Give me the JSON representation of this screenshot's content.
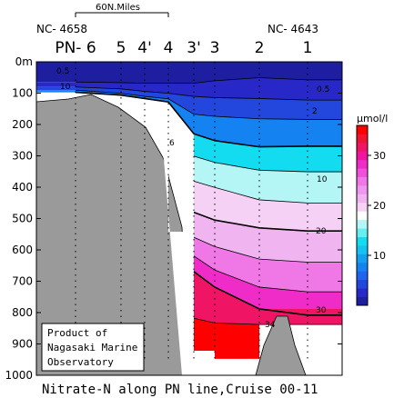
{
  "chart_data": {
    "type": "heatmap",
    "title": "Nitrate-N along PN line,Cruise 00-11",
    "y_axis": {
      "ticks": [
        "0m",
        "100",
        "200",
        "300",
        "400",
        "500",
        "600",
        "700",
        "800",
        "900",
        "1000"
      ],
      "range": [
        0,
        1000
      ],
      "inverted": true
    },
    "stations": [
      {
        "label": "PN- 6",
        "distance": 0
      },
      {
        "label": "5",
        "distance": 50
      },
      {
        "label": "4'",
        "distance": 76
      },
      {
        "label": "4",
        "distance": 102
      },
      {
        "label": "3'",
        "distance": 130
      },
      {
        "label": "3",
        "distance": 153
      },
      {
        "label": "2",
        "distance": 202
      },
      {
        "label": "1",
        "distance": 255
      }
    ],
    "endpoints": {
      "left": "NC- 4658",
      "right": "NC- 4643"
    },
    "scale_bar": {
      "label": "60N.Miles",
      "length": 100
    },
    "colorbar": {
      "unit": "μmol/l",
      "ticks": [
        10,
        20,
        30
      ],
      "range": [
        0,
        36
      ],
      "colors": [
        "#1e1ea0",
        "#2828c8",
        "#2346dc",
        "#1e64f0",
        "#1482f0",
        "#14a0f0",
        "#14c3f0",
        "#14dcf0",
        "#64f0f0",
        "#b4f5f5",
        "#ffffff",
        "#f5d2f5",
        "#f0b4f0",
        "#f096f0",
        "#f078e6",
        "#f050dc",
        "#f02cc8",
        "#f014a0",
        "#f01464",
        "#f01432",
        "#ff0000"
      ]
    },
    "contours": [
      {
        "value": 0.5,
        "depth": [
          62,
          64,
          66,
          66,
          66,
          58,
          48,
          55
        ]
      },
      {
        "value": 2,
        "depth": [
          78,
          84,
          92,
          98,
          108,
          112,
          115,
          120
        ]
      },
      {
        "value": 6,
        "depth": [
          88,
          98,
          108,
          116,
          165,
          172,
          180,
          182
        ]
      },
      {
        "value": 10,
        "depth": [
          95,
          104,
          115,
          126,
          228,
          250,
          270,
          268
        ]
      },
      {
        "value": 14,
        "depth": [
          null,
          null,
          null,
          null,
          300,
          320,
          345,
          350
        ]
      },
      {
        "value": 18,
        "depth": [
          null,
          null,
          null,
          null,
          380,
          400,
          440,
          450
        ]
      },
      {
        "value": 20,
        "depth": [
          null,
          null,
          null,
          null,
          480,
          505,
          530,
          540
        ]
      },
      {
        "value": 24,
        "depth": [
          null,
          null,
          null,
          null,
          560,
          590,
          630,
          640
        ]
      },
      {
        "value": 28,
        "depth": [
          null,
          null,
          null,
          null,
          620,
          665,
          720,
          735
        ]
      },
      {
        "value": 30,
        "depth": [
          null,
          null,
          null,
          null,
          670,
          720,
          790,
          810
        ]
      },
      {
        "value": 34,
        "depth": [
          null,
          null,
          null,
          null,
          820,
          835,
          840,
          null
        ]
      }
    ],
    "contour_labels": [
      {
        "text": "0.5",
        "side": "left"
      },
      {
        "text": "10",
        "side": "left"
      },
      {
        "text": "6",
        "side": "middle"
      },
      {
        "text": "0.5",
        "side": "right"
      },
      {
        "text": "2",
        "side": "right"
      },
      {
        "text": "10",
        "side": "right"
      },
      {
        "text": "20",
        "side": "right"
      },
      {
        "text": "30",
        "side": "right"
      },
      {
        "text": "34",
        "side": "bottom"
      }
    ],
    "credit": [
      "Product of",
      "Nagasaki Marine",
      "Observatory"
    ]
  }
}
